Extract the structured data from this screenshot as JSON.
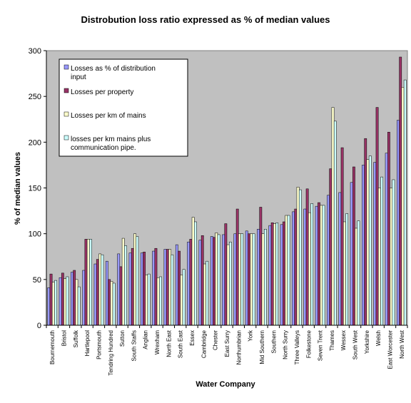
{
  "chart_data": {
    "type": "bar",
    "title": "Distrobution loss ratio expressed as % of median values",
    "xlabel": "Water Company",
    "ylabel": "% of median values",
    "ylim": [
      0,
      300
    ],
    "yticks": [
      0,
      50,
      100,
      150,
      200,
      250,
      300
    ],
    "grid": false,
    "plot_background": "#c0c0c0",
    "legend_position": "top-left",
    "categories": [
      "Bournemouth",
      "Bristol",
      "Suffolk",
      "Hartlepool",
      "Portsmouth",
      "Tendring Hundred",
      "Sutton",
      "South Staffs",
      "Anglian",
      "Wrexham",
      "North East",
      "South East",
      "Essex",
      "Cambridge",
      "Chester",
      "East Surry",
      "Northumbrian",
      "York",
      "Mid Southern",
      "Southern",
      "North Surry",
      "Three Valleys",
      "Folkestone",
      "Seven Trent",
      "Thames",
      "Wessex",
      "South West",
      "Yorkshire",
      "Welsh",
      "East Worcester",
      "North West"
    ],
    "series": [
      {
        "name": "Losses as % of distribution input",
        "color": "#9999ff",
        "values": [
          41,
          52,
          58,
          60,
          67,
          70,
          78,
          79,
          79,
          81,
          83,
          88,
          91,
          93,
          97,
          99,
          100,
          103,
          105,
          109,
          110,
          124,
          127,
          130,
          142,
          145,
          156,
          175,
          178,
          188,
          224
        ]
      },
      {
        "name": "Losses per property",
        "color": "#993366",
        "values": [
          56,
          57,
          60,
          94,
          72,
          50,
          64,
          84,
          80,
          84,
          83,
          81,
          94,
          98,
          96,
          111,
          127,
          100,
          129,
          112,
          113,
          127,
          149,
          134,
          171,
          194,
          173,
          204,
          238,
          211,
          293
        ]
      },
      {
        "name": "Losses per km of mains",
        "color": "#ffffcc",
        "values": [
          47,
          51,
          50,
          94,
          78,
          48,
          95,
          100,
          55,
          52,
          83,
          55,
          118,
          67,
          101,
          88,
          100,
          100,
          100,
          111,
          120,
          151,
          123,
          131,
          238,
          113,
          106,
          181,
          150,
          150,
          260
        ]
      },
      {
        "name": "losses per km mains plus communication pipe.",
        "color": "#ccffff",
        "values": [
          49,
          53,
          42,
          94,
          77,
          46,
          87,
          97,
          56,
          53,
          77,
          61,
          113,
          70,
          99,
          91,
          100,
          100,
          105,
          112,
          120,
          148,
          133,
          131,
          223,
          122,
          114,
          185,
          162,
          159,
          268
        ]
      }
    ]
  }
}
